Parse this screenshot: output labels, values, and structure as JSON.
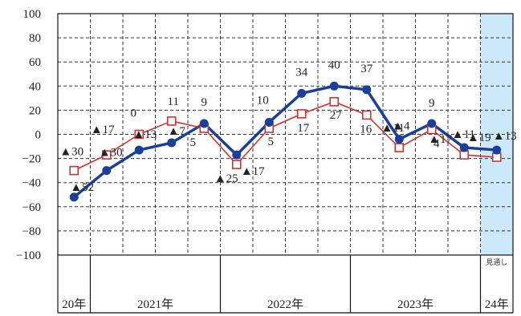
{
  "chart_data": {
    "type": "line",
    "ylim": [
      -100,
      100
    ],
    "y_ticks": [
      "100",
      "80",
      "60",
      "40",
      "20",
      "0",
      "−20",
      "−40",
      "−60",
      "−80",
      "−100"
    ],
    "grid": true,
    "forecast_label": "見通し",
    "forecast_shade_color": "#cce9fb",
    "x_years": [
      "20年",
      "2021年",
      "2022年",
      "2023年",
      "24年"
    ],
    "series": [
      {
        "color": "#1a3f99",
        "marker": "filled-circle",
        "values": [
          -52,
          -30,
          -13,
          -7,
          9,
          -17,
          10,
          34,
          40,
          37,
          -4,
          9,
          -11,
          -13
        ],
        "labels": [
          "▲52",
          "▲30",
          "▲13",
          "▲7",
          "9",
          "▲17",
          "10",
          "34",
          "40",
          "37",
          "▲4",
          "9",
          "▲11",
          "▲13"
        ]
      },
      {
        "color": "#d23030",
        "marker": "open-square",
        "values": [
          -30,
          -17,
          0,
          11,
          5,
          -25,
          5,
          17,
          27,
          16,
          -11,
          4,
          -17,
          -19
        ],
        "labels": [
          "▲30",
          "▲17",
          "0",
          "11",
          "5",
          "▲25",
          "5",
          "17",
          "27",
          "16",
          "▲11",
          "4",
          "▲17",
          "▲19"
        ]
      }
    ]
  }
}
